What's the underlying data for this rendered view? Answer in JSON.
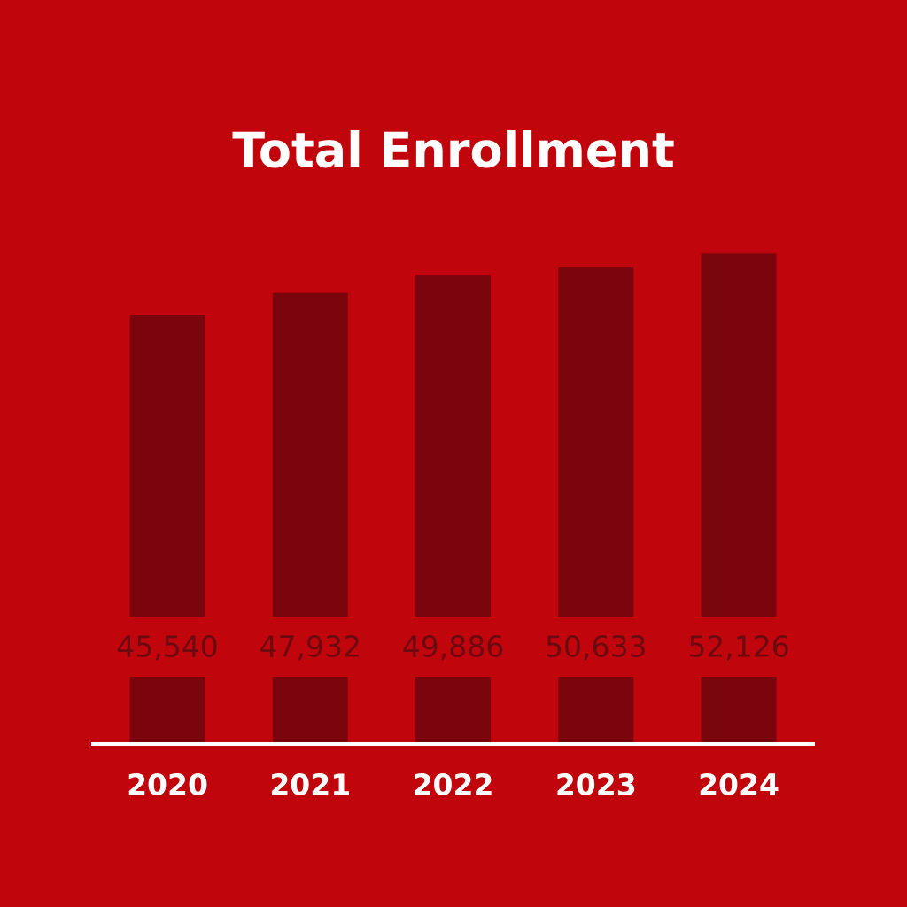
{
  "chart_data": {
    "type": "bar",
    "title": "Total Enrollment",
    "categories": [
      "2020",
      "2021",
      "2022",
      "2023",
      "2024"
    ],
    "values": [
      45540,
      47932,
      49886,
      50633,
      52126
    ],
    "value_labels": [
      "45,540",
      "47,932",
      "49,886",
      "50,633",
      "52,126"
    ],
    "color": "#7a050d",
    "label_color": "#6a0a10",
    "background": "#c1050c",
    "ylim": [
      0,
      60000
    ]
  }
}
